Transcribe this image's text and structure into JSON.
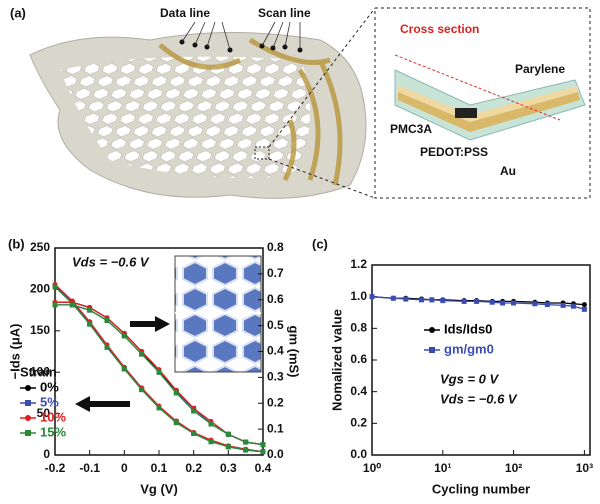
{
  "panel_a": {
    "label": "(a)",
    "data_line": "Data line",
    "scan_line": "Scan line",
    "cross_section": "Cross section",
    "parylene": "Parylene",
    "pmc3a": "PMC3A",
    "pedot": "PEDOT:PSS",
    "au": "Au"
  },
  "chart_data": [
    {
      "type": "line",
      "panel_label": "(b)",
      "xlabel": "Vg (V)",
      "ylabel": "−Ids (μA)",
      "y2label": "gm (mS)",
      "annotations": [
        "Vds = −0.6 V"
      ],
      "legend_title": "Strain",
      "x": [
        -0.2,
        -0.15,
        -0.1,
        -0.05,
        0,
        0.05,
        0.1,
        0.15,
        0.2,
        0.25,
        0.3,
        0.35,
        0.4
      ],
      "xlim": [
        -0.2,
        0.4
      ],
      "xticks": [
        -0.2,
        -0.1,
        0,
        0.1,
        0.2,
        0.3,
        0.4
      ],
      "ylim": [
        0,
        250
      ],
      "yticks": [
        0,
        50,
        100,
        150,
        200,
        250
      ],
      "y2lim": [
        0,
        0.8
      ],
      "y2ticks": [
        {
          "value": 0,
          "label": "0.0"
        },
        0.1,
        0.2,
        0.3,
        0.4,
        0.5,
        0.6,
        0.7,
        0.8
      ],
      "series": [
        {
          "name": "0%",
          "color": "#000000",
          "values": [
            205,
            185,
            160,
            132,
            105,
            80,
            58,
            40,
            27,
            17,
            10,
            6,
            4
          ]
        },
        {
          "name": "5%",
          "color": "#3b4db3",
          "values": [
            204,
            184,
            159,
            131,
            104,
            79,
            57,
            40,
            26,
            17,
            10,
            6,
            4
          ]
        },
        {
          "name": "10%",
          "color": "#e02020",
          "values": [
            206,
            186,
            161,
            133,
            106,
            81,
            59,
            41,
            27,
            18,
            11,
            7,
            4
          ]
        },
        {
          "name": "15%",
          "color": "#2a8a3a",
          "values": [
            203,
            183,
            158,
            130,
            104,
            79,
            57,
            39,
            26,
            16,
            10,
            6,
            4
          ]
        },
        {
          "color": "#000000",
          "axis": "y2",
          "values": [
            0.59,
            0.59,
            0.57,
            0.53,
            0.47,
            0.4,
            0.32,
            0.25,
            0.18,
            0.12,
            0.08,
            0.05,
            0.04
          ]
        },
        {
          "color": "#3b4db3",
          "axis": "y2",
          "values": [
            0.58,
            0.58,
            0.56,
            0.52,
            0.46,
            0.39,
            0.32,
            0.24,
            0.18,
            0.12,
            0.08,
            0.05,
            0.04
          ]
        },
        {
          "color": "#e02020",
          "axis": "y2",
          "values": [
            0.59,
            0.59,
            0.57,
            0.53,
            0.47,
            0.4,
            0.33,
            0.25,
            0.18,
            0.13,
            0.08,
            0.05,
            0.04
          ]
        },
        {
          "color": "#2a8a3a",
          "axis": "y2",
          "values": [
            0.58,
            0.58,
            0.56,
            0.52,
            0.46,
            0.39,
            0.32,
            0.24,
            0.17,
            0.12,
            0.08,
            0.05,
            0.04
          ]
        }
      ]
    },
    {
      "type": "line",
      "panel_label": "(c)",
      "xlabel": "Cycling number",
      "ylabel": "Nomalized value",
      "annotations": [
        "Vgs = 0 V",
        "Vds = −0.6 V"
      ],
      "xscale": "log",
      "x": [
        1,
        2,
        3,
        5,
        7,
        10,
        20,
        30,
        50,
        70,
        100,
        200,
        300,
        500,
        700,
        1000
      ],
      "xlim": [
        1,
        1200
      ],
      "xticks": [
        {
          "value": 1,
          "label": "10⁰"
        },
        {
          "value": 10,
          "label": "10¹"
        },
        {
          "value": 100,
          "label": "10²"
        },
        {
          "value": 1000,
          "label": "10³"
        }
      ],
      "ylim": [
        0,
        1.2
      ],
      "yticks": [
        {
          "value": 0,
          "label": "0.0"
        },
        0.2,
        0.4,
        0.6,
        0.8,
        {
          "value": 1,
          "label": "1.0"
        },
        1.2
      ],
      "series": [
        {
          "name": "Ids/Ids0",
          "color": "#000000",
          "values": [
            1.0,
            0.99,
            0.99,
            0.985,
            0.98,
            0.98,
            0.975,
            0.975,
            0.97,
            0.97,
            0.97,
            0.965,
            0.96,
            0.96,
            0.955,
            0.95
          ]
        },
        {
          "name": "gm/gm0",
          "color": "#3b4db3",
          "values": [
            1.0,
            0.99,
            0.985,
            0.98,
            0.98,
            0.975,
            0.97,
            0.97,
            0.965,
            0.96,
            0.96,
            0.955,
            0.95,
            0.945,
            0.94,
            0.92
          ]
        }
      ]
    }
  ]
}
